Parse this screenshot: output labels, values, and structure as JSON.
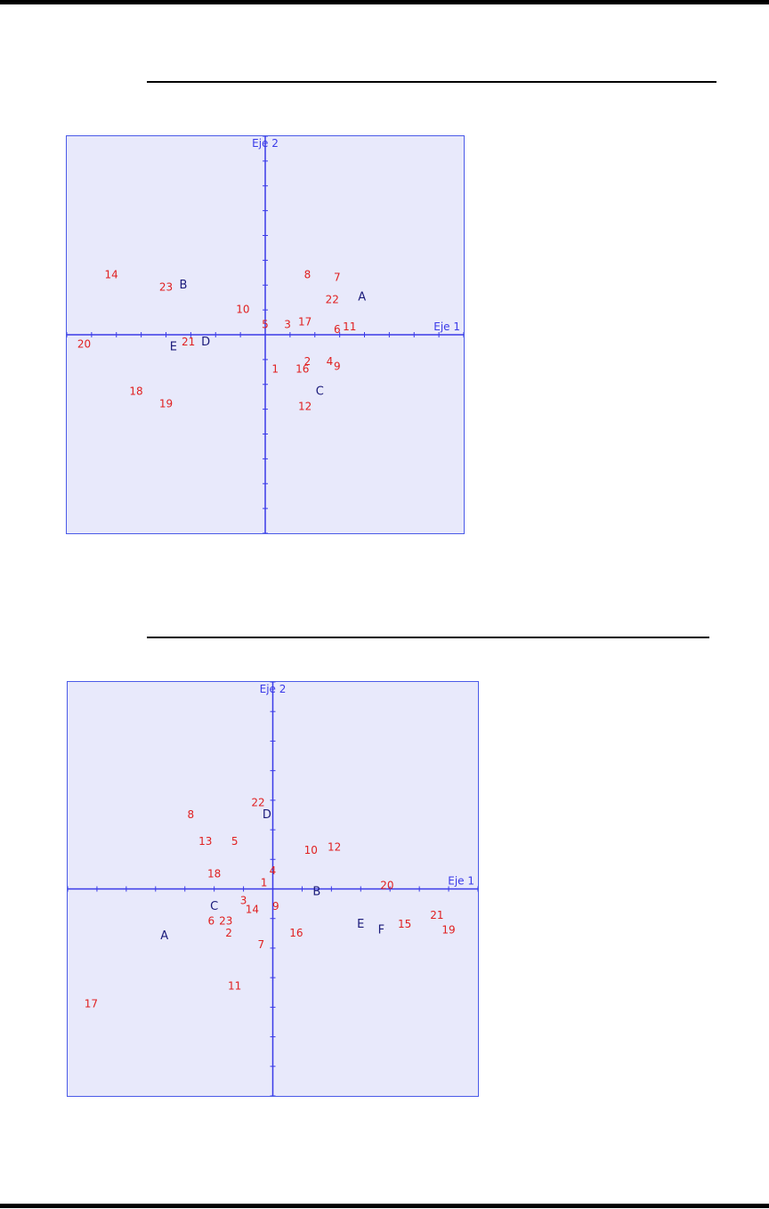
{
  "colors": {
    "axis": "#3a3ae8",
    "point_label": "#e02020",
    "category_label": "#1a1a7a",
    "plot_bg": "#e8e9fb"
  },
  "chart_data": [
    {
      "type": "scatter",
      "xlabel": "Eje 1",
      "ylabel": "Eje 2",
      "xlim": [
        -8,
        8
      ],
      "ylim": [
        -8,
        8
      ],
      "grid": false,
      "points": [
        {
          "label": "14",
          "x": -6.2,
          "y": 2.4,
          "group": "variable"
        },
        {
          "label": "23",
          "x": -4.0,
          "y": 1.9,
          "group": "variable"
        },
        {
          "label": "10",
          "x": -0.9,
          "y": 1.0,
          "group": "variable"
        },
        {
          "label": "8",
          "x": 1.7,
          "y": 2.4,
          "group": "variable"
        },
        {
          "label": "7",
          "x": 2.9,
          "y": 2.3,
          "group": "variable"
        },
        {
          "label": "22",
          "x": 2.7,
          "y": 1.4,
          "group": "variable"
        },
        {
          "label": "5",
          "x": 0.0,
          "y": 0.4,
          "group": "variable"
        },
        {
          "label": "3",
          "x": 0.9,
          "y": 0.4,
          "group": "variable"
        },
        {
          "label": "17",
          "x": 1.6,
          "y": 0.5,
          "group": "variable"
        },
        {
          "label": "6",
          "x": 2.9,
          "y": 0.2,
          "group": "variable"
        },
        {
          "label": "11",
          "x": 3.4,
          "y": 0.3,
          "group": "variable"
        },
        {
          "label": "20",
          "x": -7.3,
          "y": -0.4,
          "group": "variable"
        },
        {
          "label": "21",
          "x": -3.1,
          "y": -0.3,
          "group": "variable"
        },
        {
          "label": "1",
          "x": 0.4,
          "y": -1.4,
          "group": "variable"
        },
        {
          "label": "16",
          "x": 1.5,
          "y": -1.4,
          "group": "variable"
        },
        {
          "label": "2",
          "x": 1.7,
          "y": -1.1,
          "group": "variable"
        },
        {
          "label": "4",
          "x": 2.6,
          "y": -1.1,
          "group": "variable"
        },
        {
          "label": "9",
          "x": 2.9,
          "y": -1.3,
          "group": "variable"
        },
        {
          "label": "18",
          "x": -5.2,
          "y": -2.3,
          "group": "variable"
        },
        {
          "label": "19",
          "x": -4.0,
          "y": -2.8,
          "group": "variable"
        },
        {
          "label": "12",
          "x": 1.6,
          "y": -2.9,
          "group": "variable"
        },
        {
          "label": "A",
          "x": 3.9,
          "y": 1.5,
          "group": "category"
        },
        {
          "label": "B",
          "x": -3.3,
          "y": 2.0,
          "group": "category"
        },
        {
          "label": "C",
          "x": 2.2,
          "y": -2.3,
          "group": "category"
        },
        {
          "label": "D",
          "x": -2.4,
          "y": -0.3,
          "group": "category"
        },
        {
          "label": "E",
          "x": -3.7,
          "y": -0.5,
          "group": "category"
        }
      ]
    },
    {
      "type": "scatter",
      "xlabel": "Eje 1",
      "ylabel": "Eje 2",
      "xlim": [
        -7,
        7
      ],
      "ylim": [
        -7,
        7
      ],
      "grid": false,
      "points": [
        {
          "label": "22",
          "x": -0.5,
          "y": 2.9,
          "group": "variable"
        },
        {
          "label": "8",
          "x": -2.8,
          "y": 2.5,
          "group": "variable"
        },
        {
          "label": "13",
          "x": -2.3,
          "y": 1.6,
          "group": "variable"
        },
        {
          "label": "5",
          "x": -1.3,
          "y": 1.6,
          "group": "variable"
        },
        {
          "label": "10",
          "x": 1.3,
          "y": 1.3,
          "group": "variable"
        },
        {
          "label": "12",
          "x": 2.1,
          "y": 1.4,
          "group": "variable"
        },
        {
          "label": "18",
          "x": -2.0,
          "y": 0.5,
          "group": "variable"
        },
        {
          "label": "4",
          "x": 0.0,
          "y": 0.6,
          "group": "variable"
        },
        {
          "label": "1",
          "x": -0.3,
          "y": 0.2,
          "group": "variable"
        },
        {
          "label": "20",
          "x": 3.9,
          "y": 0.1,
          "group": "variable"
        },
        {
          "label": "3",
          "x": -1.0,
          "y": -0.4,
          "group": "variable"
        },
        {
          "label": "14",
          "x": -0.7,
          "y": -0.7,
          "group": "variable"
        },
        {
          "label": "9",
          "x": 0.1,
          "y": -0.6,
          "group": "variable"
        },
        {
          "label": "6",
          "x": -2.1,
          "y": -1.1,
          "group": "variable"
        },
        {
          "label": "23",
          "x": -1.6,
          "y": -1.1,
          "group": "variable"
        },
        {
          "label": "2",
          "x": -1.5,
          "y": -1.5,
          "group": "variable"
        },
        {
          "label": "16",
          "x": 0.8,
          "y": -1.5,
          "group": "variable"
        },
        {
          "label": "7",
          "x": -0.4,
          "y": -1.9,
          "group": "variable"
        },
        {
          "label": "15",
          "x": 4.5,
          "y": -1.2,
          "group": "variable"
        },
        {
          "label": "21",
          "x": 5.6,
          "y": -0.9,
          "group": "variable"
        },
        {
          "label": "19",
          "x": 6.0,
          "y": -1.4,
          "group": "variable"
        },
        {
          "label": "11",
          "x": -1.3,
          "y": -3.3,
          "group": "variable"
        },
        {
          "label": "17",
          "x": -6.2,
          "y": -3.9,
          "group": "variable"
        },
        {
          "label": "A",
          "x": -3.7,
          "y": -1.6,
          "group": "category"
        },
        {
          "label": "B",
          "x": 1.5,
          "y": -0.1,
          "group": "category"
        },
        {
          "label": "C",
          "x": -2.0,
          "y": -0.6,
          "group": "category"
        },
        {
          "label": "D",
          "x": -0.2,
          "y": 2.5,
          "group": "category"
        },
        {
          "label": "E",
          "x": 3.0,
          "y": -1.2,
          "group": "category"
        },
        {
          "label": "F",
          "x": 3.7,
          "y": -1.4,
          "group": "category"
        }
      ]
    }
  ]
}
